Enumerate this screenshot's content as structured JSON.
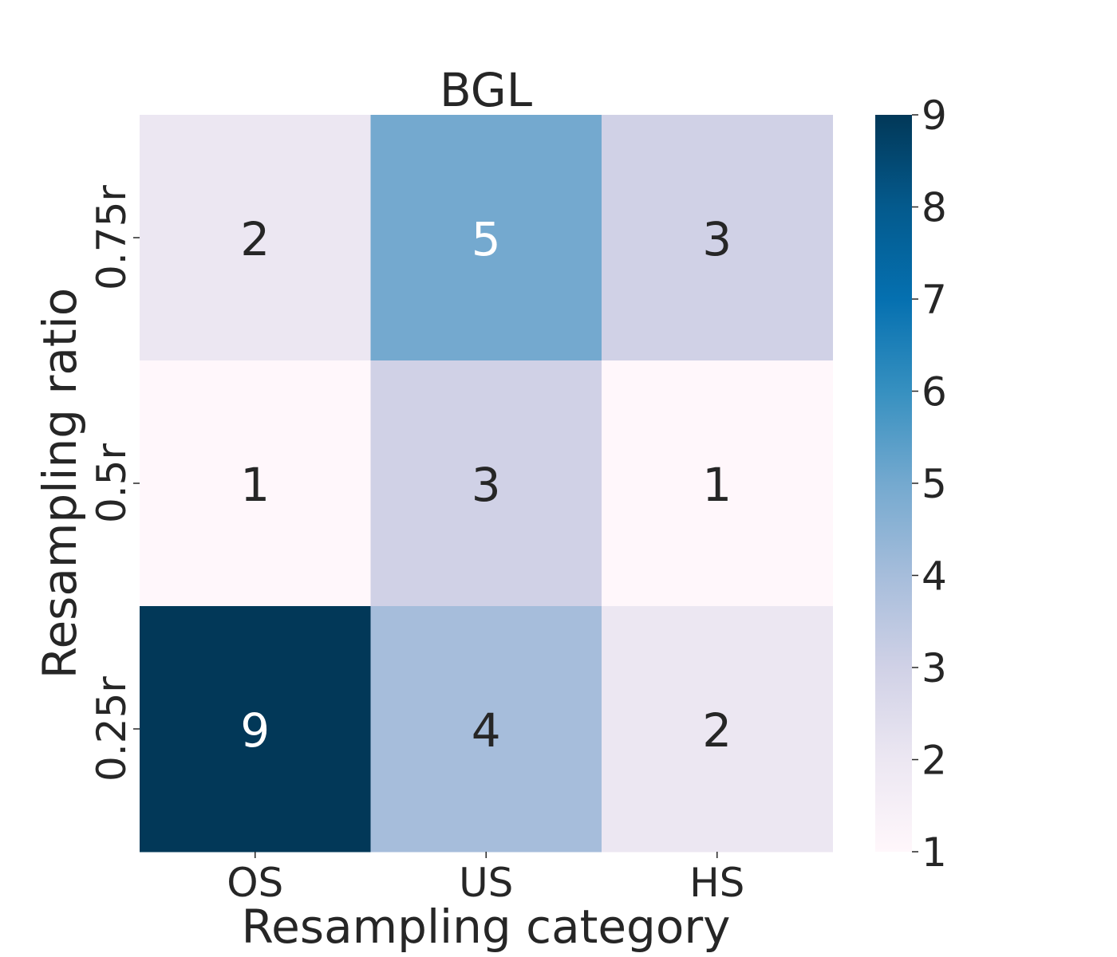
{
  "chart_data": {
    "type": "heatmap",
    "title": "BGL",
    "xlabel": "Resampling category",
    "ylabel": "Resampling ratio",
    "x_categories": [
      "OS",
      "US",
      "HS"
    ],
    "y_categories": [
      "0.75r",
      "0.5r",
      "0.25r"
    ],
    "values": [
      [
        2,
        5,
        3
      ],
      [
        1,
        3,
        1
      ],
      [
        9,
        4,
        2
      ]
    ],
    "colorbar": {
      "min": 1,
      "max": 9,
      "ticks": [
        "1",
        "2",
        "3",
        "4",
        "5",
        "6",
        "7",
        "8",
        "9"
      ],
      "colormap": "PuBu",
      "stops": [
        "#fff7fb",
        "#ece7f2",
        "#d0d1e6",
        "#a6bddb",
        "#74a9cf",
        "#3690c0",
        "#0570b0",
        "#045a8d",
        "#023858"
      ]
    },
    "annotation_colors": {
      "dark": "#262626",
      "light": "#ffffff"
    }
  }
}
